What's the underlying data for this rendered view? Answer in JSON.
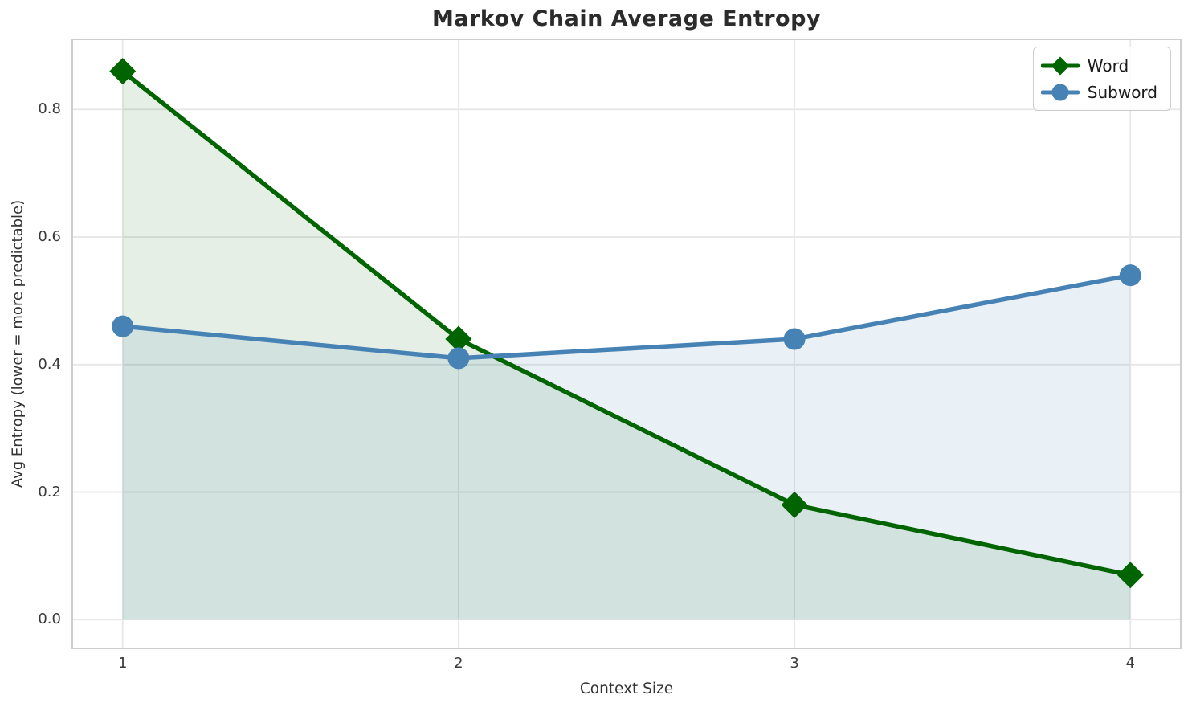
{
  "chart_data": {
    "type": "line",
    "title": "Markov Chain Average Entropy",
    "xlabel": "Context Size",
    "ylabel": "Avg Entropy (lower = more predictable)",
    "x": [
      1,
      2,
      3,
      4
    ],
    "xtick_labels": [
      "1",
      "2",
      "3",
      "4"
    ],
    "ytick_values": [
      0.0,
      0.2,
      0.4,
      0.6,
      0.8
    ],
    "ytick_labels": [
      "0.0",
      "0.2",
      "0.4",
      "0.6",
      "0.8"
    ],
    "xlim": [
      0.85,
      4.15
    ],
    "ylim": [
      -0.045,
      0.91
    ],
    "grid": true,
    "legend_position": "upper right",
    "area_fill_baseline": 0,
    "series": [
      {
        "name": "Word",
        "marker": "diamond",
        "color": "#006400",
        "fill_alpha": 0.1,
        "values": [
          0.86,
          0.44,
          0.18,
          0.07
        ]
      },
      {
        "name": "Subword",
        "marker": "circle",
        "color": "#4682b4",
        "fill_alpha": 0.12,
        "values": [
          0.46,
          0.41,
          0.44,
          0.54
        ]
      }
    ]
  },
  "colors": {
    "background": "#ffffff",
    "grid": "#e7e7e7",
    "spine": "#c9c9c9",
    "title_text": "#2b2b2b",
    "tick_text": "#3a3a3a",
    "axis_label_text": "#333333",
    "legend_border": "#cccccc",
    "legend_text": "#1a1a1a"
  }
}
